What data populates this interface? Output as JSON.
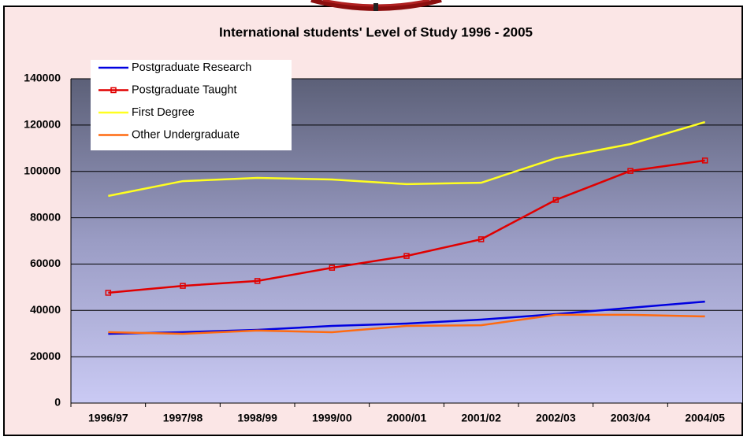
{
  "chart_data": {
    "type": "line",
    "title": "International students' Level of Study 1996 - 2005",
    "categories": [
      "1996/97",
      "1997/98",
      "1998/99",
      "1999/00",
      "2000/01",
      "2001/02",
      "2002/03",
      "2003/04",
      "2004/05"
    ],
    "series": [
      {
        "name": "Postgraduate Research",
        "color": "#0000e0",
        "values": [
          29900,
          30600,
          31600,
          33300,
          34300,
          36000,
          38400,
          41100,
          43800
        ]
      },
      {
        "name": "Postgraduate Taught",
        "color": "#e00000",
        "marker": "square",
        "values": [
          47600,
          50600,
          52700,
          58400,
          63500,
          70700,
          87700,
          100200,
          104700
        ]
      },
      {
        "name": "First Degree",
        "color": "#ffff20",
        "values": [
          89400,
          95800,
          97200,
          96500,
          94500,
          95100,
          105700,
          111800,
          121300
        ]
      },
      {
        "name": "Other Undergraduate",
        "color": "#ff6a10",
        "values": [
          30600,
          29900,
          31300,
          30600,
          33300,
          33600,
          38100,
          38100,
          37400
        ]
      }
    ],
    "ylim": [
      0,
      140000
    ],
    "yticks": [
      0,
      20000,
      40000,
      60000,
      80000,
      100000,
      120000,
      140000
    ],
    "grid": true,
    "legend": "top-left"
  }
}
